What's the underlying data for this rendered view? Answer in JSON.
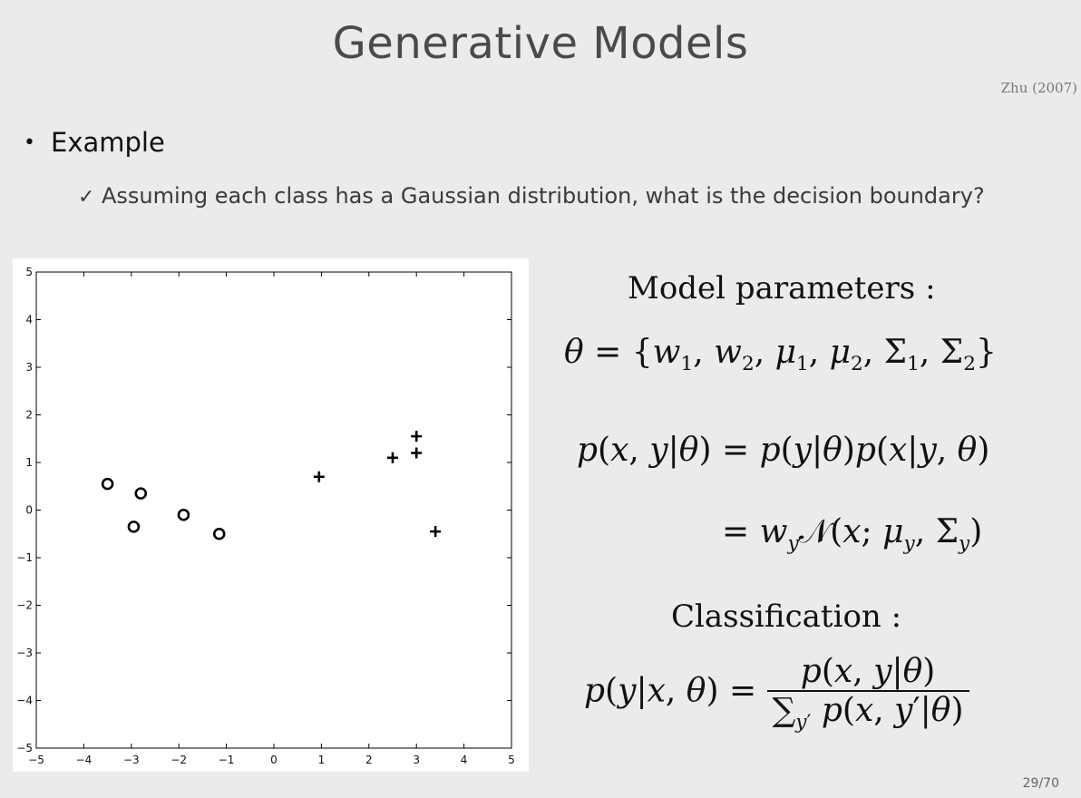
{
  "slide": {
    "title": "Generative Models",
    "citation": "Zhu (2007)",
    "bullet": "Example",
    "bullet_marker": "•",
    "sub_marker": "✓",
    "sub_bullet": "Assuming each class has a Gaussian distribution, what is the decision boundary?",
    "page_number": "29/70"
  },
  "math": {
    "model_heading": "Model parameters :",
    "classification_heading": "Classification :"
  },
  "chart_data": {
    "type": "scatter",
    "title": "",
    "xlabel": "",
    "ylabel": "",
    "xlim": [
      -5,
      5
    ],
    "ylim": [
      -5,
      5
    ],
    "x_ticks": [
      -5,
      -4,
      -3,
      -2,
      -1,
      0,
      1,
      2,
      3,
      4,
      5
    ],
    "y_ticks": [
      -5,
      -4,
      -3,
      -2,
      -1,
      0,
      1,
      2,
      3,
      4,
      5
    ],
    "grid": false,
    "series": [
      {
        "name": "class-circle",
        "marker": "o",
        "points": [
          [
            -3.5,
            0.55
          ],
          [
            -2.8,
            0.35
          ],
          [
            -2.95,
            -0.35
          ],
          [
            -1.9,
            -0.1
          ],
          [
            -1.15,
            -0.5
          ]
        ]
      },
      {
        "name": "class-plus",
        "marker": "+",
        "points": [
          [
            0.95,
            0.7
          ],
          [
            2.5,
            1.1
          ],
          [
            3.0,
            1.55
          ],
          [
            3.0,
            1.2
          ],
          [
            3.4,
            -0.45
          ]
        ]
      }
    ]
  }
}
